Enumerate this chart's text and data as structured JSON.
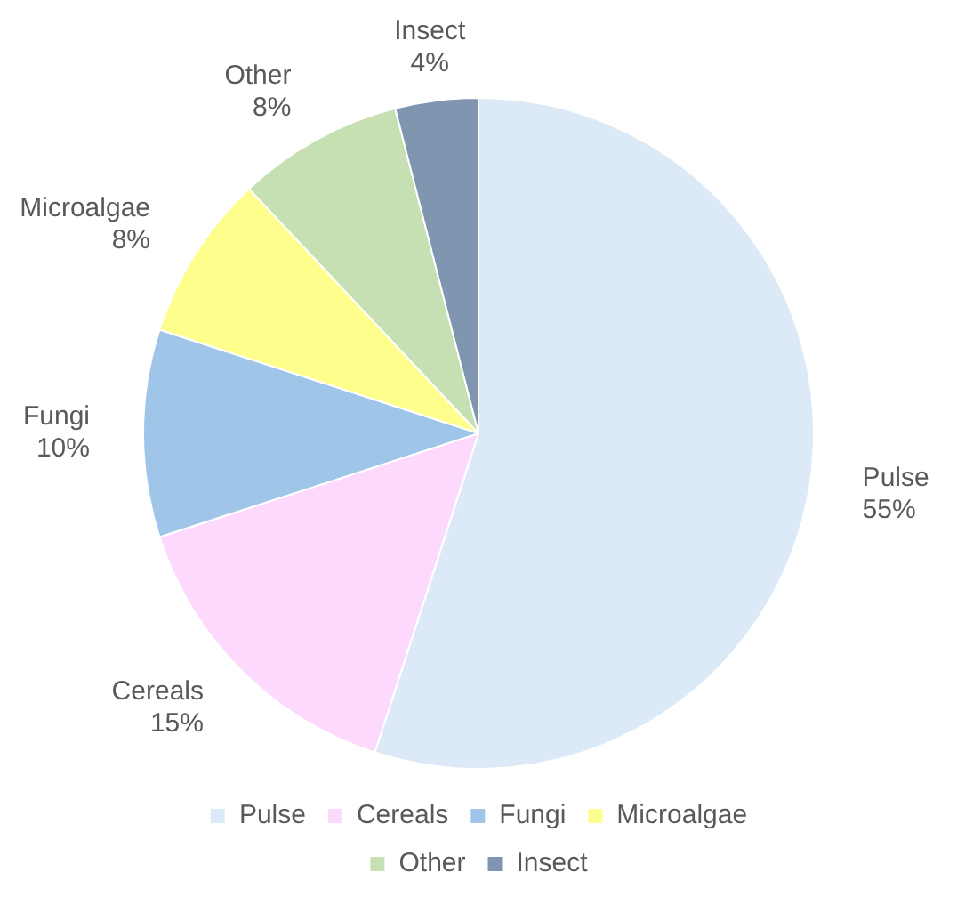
{
  "chart_data": {
    "type": "pie",
    "categories": [
      "Pulse",
      "Cereals",
      "Fungi",
      "Microalgae",
      "Other",
      "Insect"
    ],
    "values": [
      55,
      15,
      10,
      8,
      8,
      4
    ],
    "value_labels": [
      "55%",
      "15%",
      "10%",
      "8%",
      "8%",
      "4%"
    ],
    "colors": [
      "#dce9f6",
      "#fdd9fd",
      "#9fc5e8",
      "#fefe8c",
      "#c6e0b4",
      "#8095b0"
    ],
    "legend": "bottom"
  }
}
